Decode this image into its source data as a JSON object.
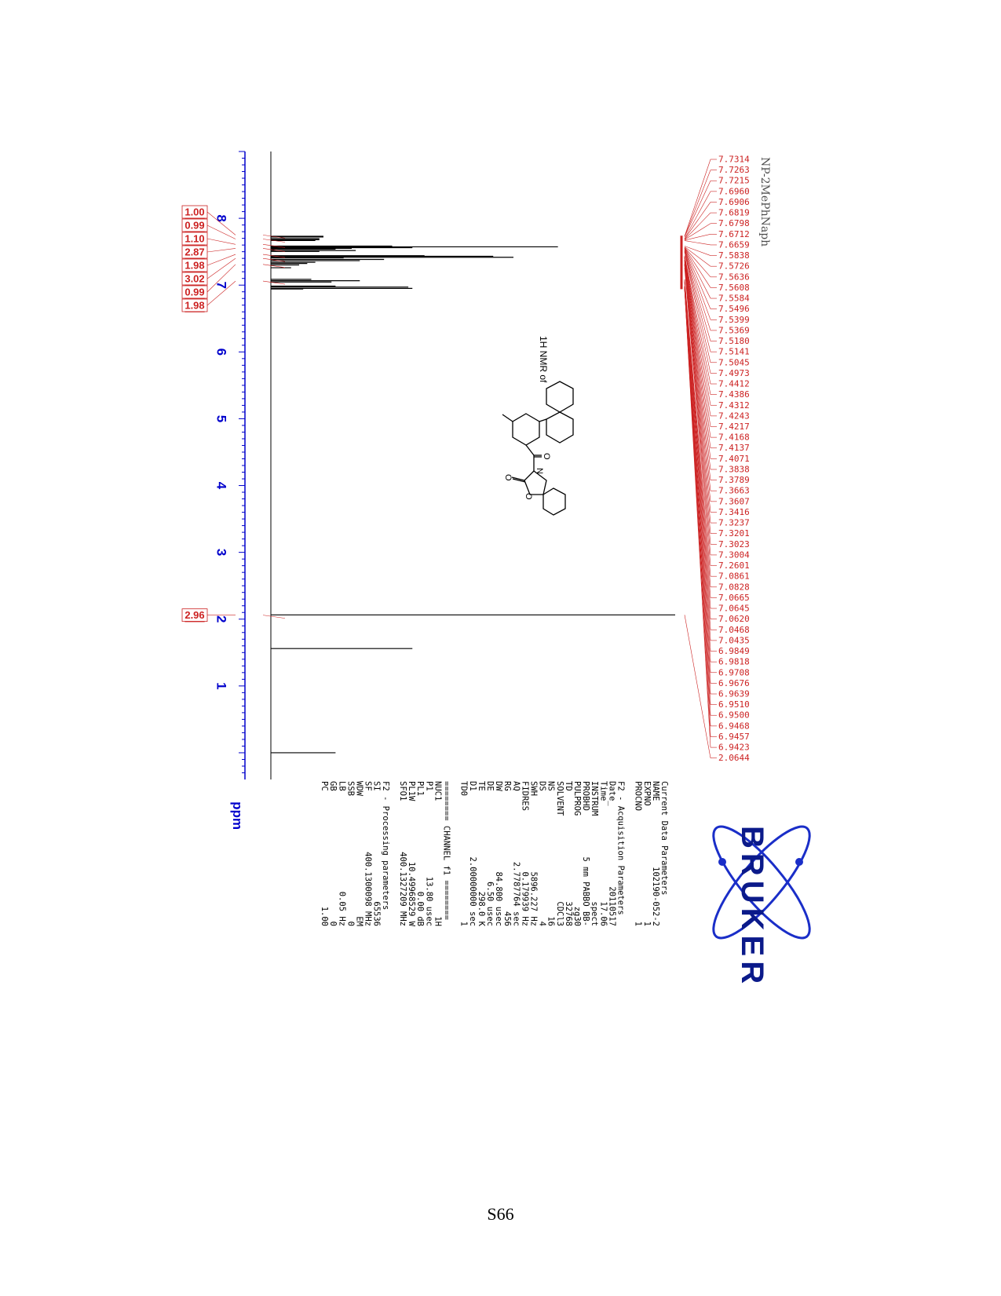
{
  "page": {
    "number": "S66"
  },
  "chart_data": {
    "type": "line",
    "orientation": "rotated-90-clockwise",
    "title": "1H NMR of",
    "xlabel": "ppm",
    "x_axis_reversed": true,
    "xlim": [
      9.0,
      -0.4
    ],
    "x_ticks": [
      8,
      7,
      6,
      5,
      4,
      3,
      2,
      1
    ],
    "axis_color": "#0000cc",
    "trace_color": "#000000",
    "label_color": "#cc2222",
    "grid": false,
    "sample_name": "NP-2MePhNaph",
    "peak_labels": [
      "7.7314",
      "7.7263",
      "7.7215",
      "7.6960",
      "7.6906",
      "7.6819",
      "7.6798",
      "7.6712",
      "7.6659",
      "7.5838",
      "7.5726",
      "7.5636",
      "7.5608",
      "7.5584",
      "7.5496",
      "7.5399",
      "7.5369",
      "7.5180",
      "7.5141",
      "7.5045",
      "7.4973",
      "7.4412",
      "7.4386",
      "7.4312",
      "7.4243",
      "7.4217",
      "7.4168",
      "7.4137",
      "7.4071",
      "7.3838",
      "7.3789",
      "7.3663",
      "7.3607",
      "7.3416",
      "7.3237",
      "7.3201",
      "7.3023",
      "7.3004",
      "7.2601",
      "7.0861",
      "7.0828",
      "7.0665",
      "7.0645",
      "7.0620",
      "7.0468",
      "7.0435",
      "6.9849",
      "6.9818",
      "6.9708",
      "6.9676",
      "6.9639",
      "6.9510",
      "6.9500",
      "6.9468",
      "6.9457",
      "6.9423",
      "2.0644"
    ],
    "peaks": [
      {
        "x": 7.731,
        "y": 0.13
      },
      {
        "x": 7.721,
        "y": 0.13
      },
      {
        "x": 7.696,
        "y": 0.12
      },
      {
        "x": 7.68,
        "y": 0.12
      },
      {
        "x": 7.667,
        "y": 0.11
      },
      {
        "x": 7.584,
        "y": 0.3
      },
      {
        "x": 7.573,
        "y": 0.71
      },
      {
        "x": 7.561,
        "y": 0.35
      },
      {
        "x": 7.55,
        "y": 0.2
      },
      {
        "x": 7.538,
        "y": 0.16
      },
      {
        "x": 7.518,
        "y": 0.21
      },
      {
        "x": 7.505,
        "y": 0.12
      },
      {
        "x": 7.441,
        "y": 0.38
      },
      {
        "x": 7.431,
        "y": 0.55
      },
      {
        "x": 7.417,
        "y": 0.6
      },
      {
        "x": 7.407,
        "y": 0.18
      },
      {
        "x": 7.384,
        "y": 0.28
      },
      {
        "x": 7.366,
        "y": 0.22
      },
      {
        "x": 7.342,
        "y": 0.11
      },
      {
        "x": 7.324,
        "y": 0.09
      },
      {
        "x": 7.302,
        "y": 0.07
      },
      {
        "x": 7.26,
        "y": 0.05
      },
      {
        "x": 7.086,
        "y": 0.1
      },
      {
        "x": 7.066,
        "y": 0.22
      },
      {
        "x": 7.047,
        "y": 0.15
      },
      {
        "x": 6.985,
        "y": 0.16
      },
      {
        "x": 6.971,
        "y": 0.34
      },
      {
        "x": 6.951,
        "y": 0.35
      },
      {
        "x": 6.942,
        "y": 0.08
      },
      {
        "x": 2.064,
        "y": 1.0
      },
      {
        "x": 1.56,
        "y": 0.35
      },
      {
        "x": 0.0,
        "y": 0.16
      }
    ],
    "integrals": [
      {
        "value": "1.00",
        "x": 7.75
      },
      {
        "value": "0.99",
        "x": 7.69
      },
      {
        "value": "1.10",
        "x": 7.61
      },
      {
        "value": "2.87",
        "x": 7.55
      },
      {
        "value": "1.98",
        "x": 7.46
      },
      {
        "value": "3.02",
        "x": 7.4
      },
      {
        "value": "0.99",
        "x": 7.31
      },
      {
        "value": "1.98",
        "x": 7.06
      },
      {
        "value": "2.96",
        "x": 2.06
      }
    ]
  },
  "structure": {
    "atom_labels": [
      "O",
      "N",
      "O",
      "O"
    ]
  },
  "bruker": {
    "logo_text": "BRUKER",
    "parameters": [
      [
        "Current Data Parameters",
        ""
      ],
      [
        "NAME",
        "102190-052-2"
      ],
      [
        "EXPNO",
        "1"
      ],
      [
        "PROCNO",
        "1"
      ],
      [
        "",
        ""
      ],
      [
        "F2 - Acquisition Parameters",
        ""
      ],
      [
        "Date_",
        "20110517"
      ],
      [
        "Time",
        "17.06"
      ],
      [
        "INSTRUM",
        "spect"
      ],
      [
        "PROBHD",
        "5 mm PABBO BB-"
      ],
      [
        "PULPROG",
        "zg30"
      ],
      [
        "TD",
        "32768"
      ],
      [
        "SOLVENT",
        "CDCl3"
      ],
      [
        "NS",
        "16"
      ],
      [
        "DS",
        "4"
      ],
      [
        "SWH",
        "5896.227 Hz"
      ],
      [
        "FIDRES",
        "0.179939 Hz"
      ],
      [
        "AQ",
        "2.7787764 sec"
      ],
      [
        "RG",
        "456"
      ],
      [
        "DW",
        "84.800 usec"
      ],
      [
        "DE",
        "6.50 usec"
      ],
      [
        "TE",
        "298.0 K"
      ],
      [
        "D1",
        "2.00000000 sec"
      ],
      [
        "TD0",
        "1"
      ],
      [
        "",
        ""
      ],
      [
        "======== CHANNEL f1 ========",
        ""
      ],
      [
        "NUC1",
        "1H"
      ],
      [
        "P1",
        "13.80 usec"
      ],
      [
        "PL1",
        "0.00 dB"
      ],
      [
        "PL1W",
        "10.49968529 W"
      ],
      [
        "SFO1",
        "400.1327209 MHz"
      ],
      [
        "",
        ""
      ],
      [
        "F2 - Processing parameters",
        ""
      ],
      [
        "SI",
        "65536"
      ],
      [
        "SF",
        "400.1300098 MHz"
      ],
      [
        "WDW",
        "EM"
      ],
      [
        "SSB",
        "0"
      ],
      [
        "LB",
        "0.05 Hz"
      ],
      [
        "GB",
        "0"
      ],
      [
        "PC",
        "1.00"
      ]
    ]
  }
}
